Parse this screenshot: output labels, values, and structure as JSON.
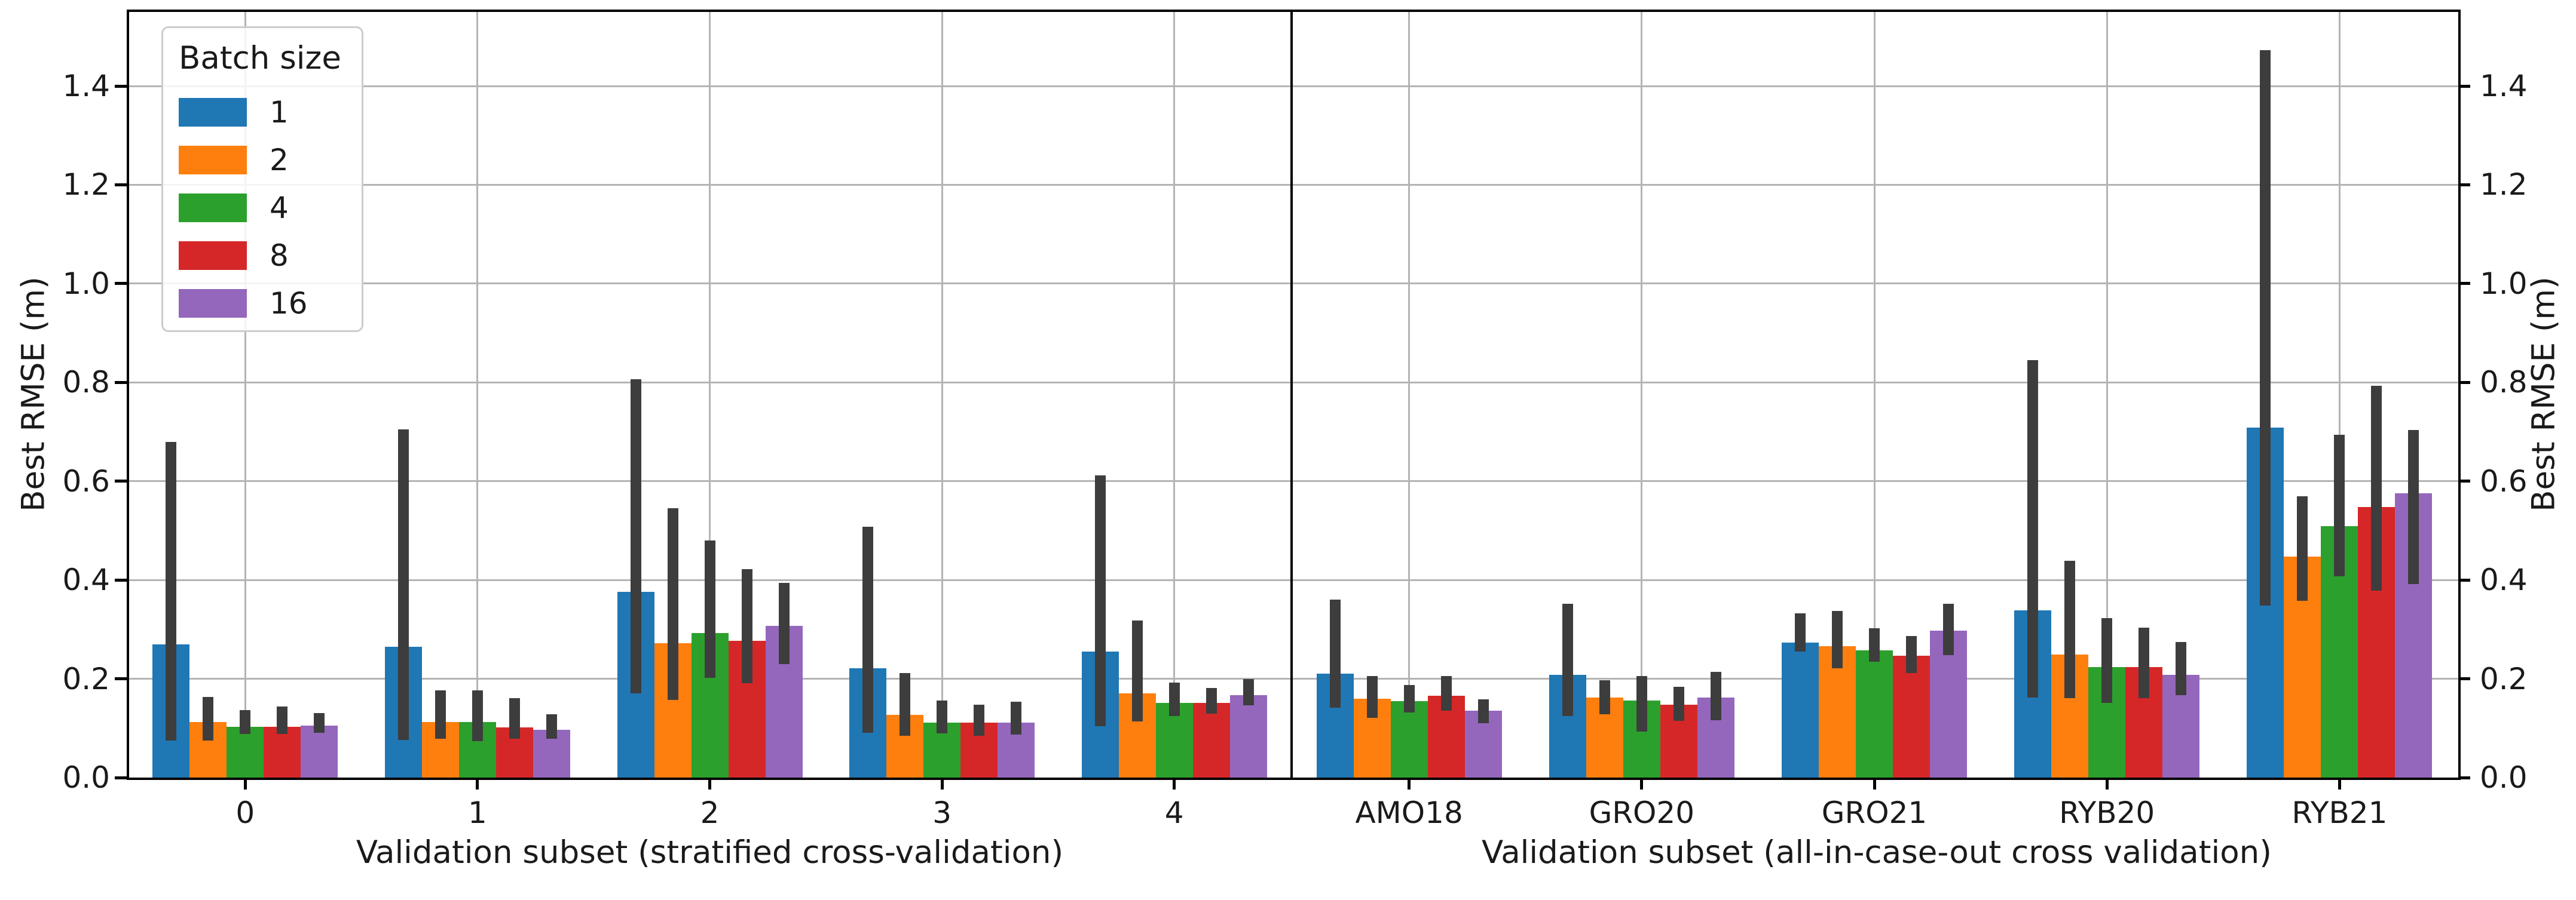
{
  "chart_data": {
    "type": "bar",
    "title": "",
    "ylabel_left": "Best RMSE (m)",
    "ylabel_right": "Best RMSE (m)",
    "ylim": [
      0,
      1.55
    ],
    "ytick_labels": [
      "0.0",
      "0.2",
      "0.4",
      "0.6",
      "0.8",
      "1.0",
      "1.2",
      "1.4"
    ],
    "grid": true,
    "legend": {
      "title": "Batch size",
      "entries": [
        "1",
        "2",
        "4",
        "8",
        "16"
      ],
      "position": "upper left"
    },
    "colors": [
      "#1f77b4",
      "#ff7f0e",
      "#2ca02c",
      "#d62728",
      "#9467bd"
    ],
    "error_bar_color": "#3d3d3d",
    "subplots": [
      {
        "xlabel": "Validation subset (stratified cross-validation)",
        "categories": [
          "0",
          "1",
          "2",
          "3",
          "4"
        ],
        "series": [
          {
            "name": "1",
            "values": [
              0.27,
              0.265,
              0.376,
              0.221,
              0.255
            ],
            "err_low": [
              0.075,
              0.076,
              0.17,
              0.091,
              0.104
            ],
            "err_high": [
              0.68,
              0.705,
              0.807,
              0.508,
              0.612
            ]
          },
          {
            "name": "2",
            "values": [
              0.113,
              0.112,
              0.272,
              0.127,
              0.17
            ],
            "err_low": [
              0.075,
              0.079,
              0.157,
              0.085,
              0.114
            ],
            "err_high": [
              0.163,
              0.177,
              0.545,
              0.212,
              0.318
            ]
          },
          {
            "name": "4",
            "values": [
              0.103,
              0.112,
              0.293,
              0.111,
              0.151
            ],
            "err_low": [
              0.088,
              0.074,
              0.202,
              0.089,
              0.125
            ],
            "err_high": [
              0.137,
              0.177,
              0.48,
              0.156,
              0.192
            ]
          },
          {
            "name": "8",
            "values": [
              0.103,
              0.102,
              0.277,
              0.111,
              0.151
            ],
            "err_low": [
              0.088,
              0.079,
              0.191,
              0.085,
              0.129
            ],
            "err_high": [
              0.144,
              0.161,
              0.422,
              0.147,
              0.181
            ]
          },
          {
            "name": "16",
            "values": [
              0.105,
              0.097,
              0.307,
              0.111,
              0.167
            ],
            "err_low": [
              0.091,
              0.078,
              0.23,
              0.087,
              0.146
            ],
            "err_high": [
              0.131,
              0.128,
              0.394,
              0.153,
              0.2
            ]
          }
        ]
      },
      {
        "xlabel": "Validation subset (all-in-case-out cross validation)",
        "categories": [
          "AMO18",
          "GRO20",
          "GRO21",
          "RYB20",
          "RYB21"
        ],
        "series": [
          {
            "name": "1",
            "values": [
              0.21,
              0.208,
              0.273,
              0.339,
              0.709
            ],
            "err_low": [
              0.142,
              0.124,
              0.255,
              0.162,
              0.348
            ],
            "err_high": [
              0.36,
              0.352,
              0.332,
              0.845,
              1.473
            ]
          },
          {
            "name": "2",
            "values": [
              0.159,
              0.162,
              0.266,
              0.249,
              0.447
            ],
            "err_low": [
              0.121,
              0.128,
              0.221,
              0.161,
              0.358
            ],
            "err_high": [
              0.205,
              0.197,
              0.337,
              0.439,
              0.569
            ]
          },
          {
            "name": "4",
            "values": [
              0.155,
              0.156,
              0.257,
              0.224,
              0.509
            ],
            "err_low": [
              0.132,
              0.093,
              0.234,
              0.151,
              0.408
            ],
            "err_high": [
              0.188,
              0.206,
              0.302,
              0.323,
              0.694
            ]
          },
          {
            "name": "8",
            "values": [
              0.166,
              0.147,
              0.247,
              0.224,
              0.548
            ],
            "err_low": [
              0.135,
              0.115,
              0.212,
              0.161,
              0.379
            ],
            "err_high": [
              0.205,
              0.184,
              0.286,
              0.303,
              0.793
            ]
          },
          {
            "name": "16",
            "values": [
              0.135,
              0.162,
              0.297,
              0.208,
              0.575
            ],
            "err_low": [
              0.11,
              0.116,
              0.248,
              0.167,
              0.392
            ],
            "err_high": [
              0.158,
              0.214,
              0.352,
              0.274,
              0.704
            ]
          }
        ]
      }
    ]
  }
}
